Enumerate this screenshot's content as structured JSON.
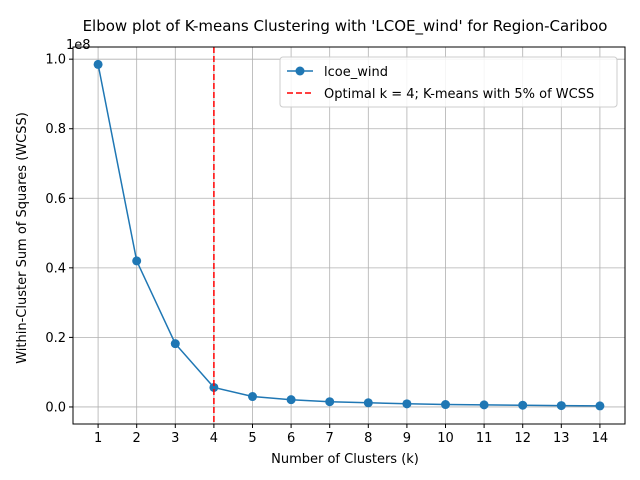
{
  "chart_data": {
    "type": "line",
    "title": "Elbow plot of K-means Clustering with 'LCOE_wind' for Region-Cariboo",
    "xlabel": "Number of Clusters (k)",
    "ylabel": "Within-Cluster Sum of Squares (WCSS)",
    "y_offset_label": "1e8",
    "x": [
      1,
      2,
      3,
      4,
      5,
      6,
      7,
      8,
      9,
      10,
      11,
      12,
      13,
      14
    ],
    "x_ticks": [
      "1",
      "2",
      "3",
      "4",
      "5",
      "6",
      "7",
      "8",
      "9",
      "10",
      "11",
      "12",
      "13",
      "14"
    ],
    "y_ticks": [
      "0.0",
      "0.2",
      "0.4",
      "0.6",
      "0.8",
      "1.0"
    ],
    "y_tick_values": [
      0.0,
      0.2,
      0.4,
      0.6,
      0.8,
      1.0
    ],
    "xlim": [
      0.35,
      14.65
    ],
    "ylim": [
      -0.049,
      1.035
    ],
    "grid": true,
    "legend_position": "top-right",
    "series": [
      {
        "name": "lcoe_wind",
        "color": "#1f77b4",
        "marker": "circle",
        "values": [
          0.985,
          0.42,
          0.182,
          0.056,
          0.03,
          0.021,
          0.015,
          0.012,
          0.009,
          0.007,
          0.006,
          0.005,
          0.004,
          0.003
        ]
      }
    ],
    "vline": {
      "x": 4,
      "label": "Optimal k = 4; K-means with 5% of WCSS",
      "color": "#ff0000",
      "style": "dashed"
    }
  }
}
